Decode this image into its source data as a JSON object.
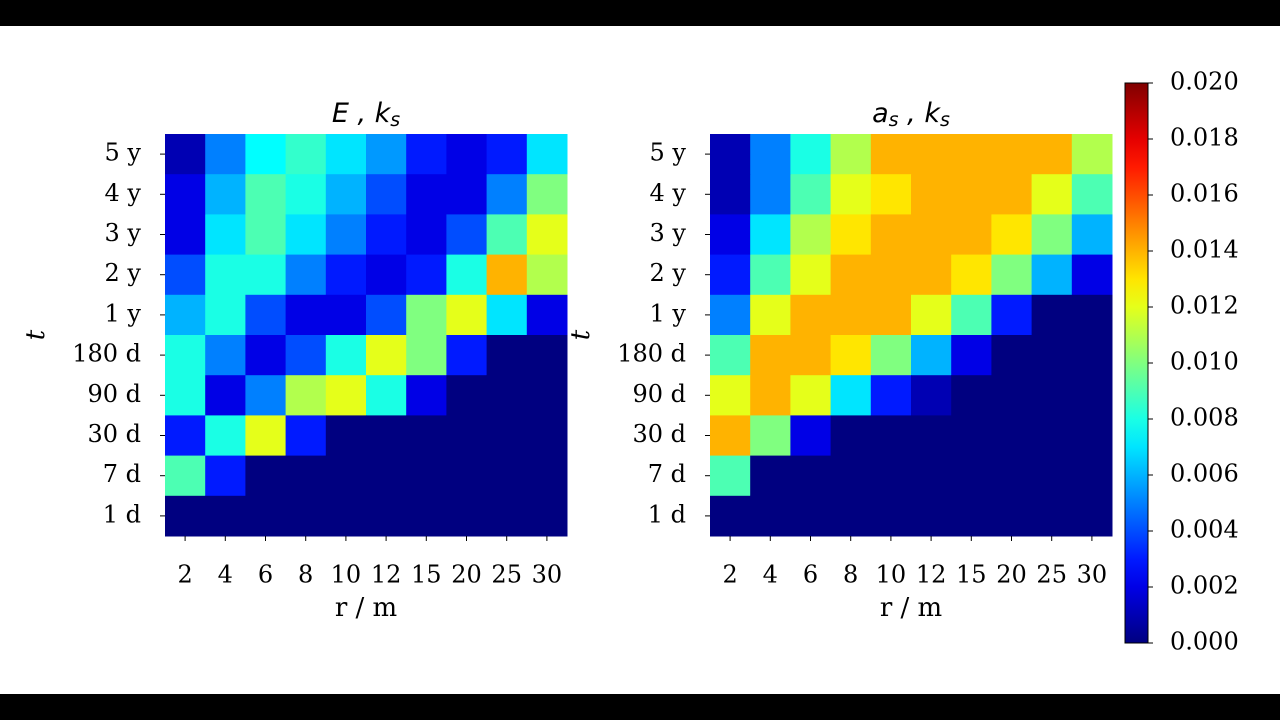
{
  "chart_data": [
    {
      "type": "heatmap",
      "title": "E , k",
      "title_subscript": "s",
      "xlabel": "r / m",
      "ylabel": "t",
      "x": [
        "2",
        "4",
        "6",
        "8",
        "10",
        "12",
        "15",
        "20",
        "25",
        "30"
      ],
      "y": [
        "5 y",
        "4 y",
        "3 y",
        "2 y",
        "1 y",
        "180 d",
        "90 d",
        "30 d",
        "7 d",
        "1 d"
      ],
      "colormap": "jet",
      "zlim": [
        0,
        0.02
      ],
      "values": [
        [
          0.001,
          0.005,
          0.0075,
          0.0085,
          0.007,
          0.0055,
          0.003,
          0.002,
          0.003,
          0.007
        ],
        [
          0.002,
          0.006,
          0.009,
          0.008,
          0.006,
          0.004,
          0.002,
          0.002,
          0.005,
          0.01
        ],
        [
          0.002,
          0.007,
          0.009,
          0.007,
          0.005,
          0.003,
          0.002,
          0.004,
          0.009,
          0.012
        ],
        [
          0.004,
          0.008,
          0.008,
          0.005,
          0.003,
          0.002,
          0.003,
          0.008,
          0.014,
          0.011
        ],
        [
          0.006,
          0.008,
          0.004,
          0.002,
          0.002,
          0.004,
          0.01,
          0.012,
          0.007,
          0.002
        ],
        [
          0.008,
          0.005,
          0.002,
          0.004,
          0.008,
          0.012,
          0.01,
          0.003,
          0,
          0
        ],
        [
          0.008,
          0.002,
          0.005,
          0.011,
          0.012,
          0.008,
          0.002,
          0,
          0,
          0
        ],
        [
          0.003,
          0.008,
          0.012,
          0.003,
          0,
          0,
          0,
          0,
          0,
          0
        ],
        [
          0.009,
          0.003,
          0,
          0,
          0,
          0,
          0,
          0,
          0,
          0
        ],
        [
          0,
          0,
          0,
          0,
          0,
          0,
          0,
          0,
          0,
          0
        ]
      ]
    },
    {
      "type": "heatmap",
      "title": "a",
      "title_subscript": "s",
      "title_tail": " , k",
      "title_tail_subscript": "s",
      "xlabel": "r / m",
      "ylabel": "t",
      "x": [
        "2",
        "4",
        "6",
        "8",
        "10",
        "12",
        "15",
        "20",
        "25",
        "30"
      ],
      "y": [
        "5 y",
        "4 y",
        "3 y",
        "2 y",
        "1 y",
        "180 d",
        "90 d",
        "30 d",
        "7 d",
        "1 d"
      ],
      "colormap": "jet",
      "zlim": [
        0,
        0.02
      ],
      "zticks": [
        {
          "value": 0,
          "label": "0.000"
        },
        {
          "value": 0.002,
          "label": "0.002"
        },
        {
          "value": 0.004,
          "label": "0.004"
        },
        {
          "value": 0.006,
          "label": "0.006"
        },
        {
          "value": 0.008,
          "label": "0.008"
        },
        {
          "value": 0.01,
          "label": "0.010"
        },
        {
          "value": 0.012,
          "label": "0.012"
        },
        {
          "value": 0.014,
          "label": "0.014"
        },
        {
          "value": 0.016,
          "label": "0.016"
        },
        {
          "value": 0.018,
          "label": "0.018"
        },
        {
          "value": 0.02,
          "label": "0.020"
        }
      ],
      "values": [
        [
          0.001,
          0.005,
          0.008,
          0.011,
          0.014,
          0.014,
          0.014,
          0.014,
          0.014,
          0.011
        ],
        [
          0.001,
          0.005,
          0.009,
          0.012,
          0.013,
          0.014,
          0.014,
          0.014,
          0.012,
          0.009
        ],
        [
          0.002,
          0.007,
          0.011,
          0.013,
          0.014,
          0.014,
          0.014,
          0.013,
          0.01,
          0.006
        ],
        [
          0.003,
          0.009,
          0.012,
          0.014,
          0.014,
          0.014,
          0.013,
          0.01,
          0.006,
          0.002
        ],
        [
          0.005,
          0.012,
          0.014,
          0.014,
          0.014,
          0.012,
          0.009,
          0.003,
          0,
          0
        ],
        [
          0.009,
          0.014,
          0.014,
          0.013,
          0.01,
          0.006,
          0.002,
          0,
          0,
          0
        ],
        [
          0.012,
          0.014,
          0.012,
          0.007,
          0.003,
          0.001,
          0,
          0,
          0,
          0
        ],
        [
          0.014,
          0.01,
          0.002,
          0,
          0,
          0,
          0,
          0,
          0,
          0
        ],
        [
          0.009,
          0,
          0,
          0,
          0,
          0,
          0,
          0,
          0,
          0
        ],
        [
          0,
          0,
          0,
          0,
          0,
          0,
          0,
          0,
          0,
          0
        ]
      ]
    }
  ]
}
